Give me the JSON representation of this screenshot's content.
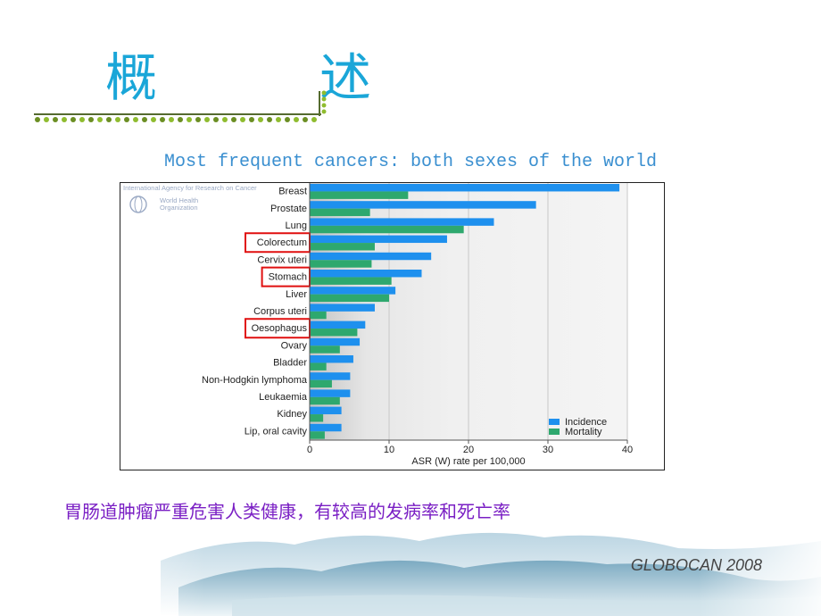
{
  "slide": {
    "title": "概　述",
    "subtitle": "Most frequent cancers: both sexes of the world",
    "caption": "胃肠道肿瘤严重危害人类健康，有较高的发病率和死亡率",
    "source": "GLOBOCAN 2008"
  },
  "logo": {
    "agency": "International Agency for Research on Cancer",
    "who_line1": "World Health",
    "who_line2": "Organization"
  },
  "colors": {
    "incidence": "#1e90ee",
    "mortality": "#2ea86e",
    "highlight_box": "#e01010",
    "title": "#1aa6d8",
    "caption": "#7a1fc4"
  },
  "chart_data": {
    "type": "bar",
    "orientation": "horizontal",
    "categories": [
      "Breast",
      "Prostate",
      "Lung",
      "Colorectum",
      "Cervix uteri",
      "Stomach",
      "Liver",
      "Corpus uteri",
      "Oesophagus",
      "Ovary",
      "Bladder",
      "Non-Hodgkin lymphoma",
      "Leukaemia",
      "Kidney",
      "Lip, oral cavity"
    ],
    "series": [
      {
        "name": "Incidence",
        "values": [
          39.0,
          28.5,
          23.2,
          17.3,
          15.3,
          14.1,
          10.8,
          8.2,
          7.0,
          6.3,
          5.5,
          5.1,
          5.1,
          4.0,
          4.0
        ]
      },
      {
        "name": "Mortality",
        "values": [
          12.4,
          7.6,
          19.4,
          8.2,
          7.8,
          10.3,
          10.0,
          2.1,
          6.0,
          3.8,
          2.1,
          2.8,
          3.8,
          1.7,
          1.9
        ]
      }
    ],
    "highlighted": [
      "Colorectum",
      "Stomach",
      "Oesophagus"
    ],
    "xlabel": "ASR (W) rate per 100,000",
    "xticks": [
      "0",
      "10",
      "20",
      "30",
      "40"
    ],
    "xlim": [
      0,
      40
    ],
    "grid": true,
    "legend_position": "bottom-right"
  }
}
